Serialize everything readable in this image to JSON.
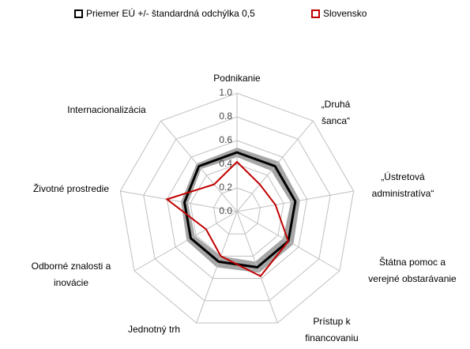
{
  "chart_data": {
    "type": "radar",
    "categories": [
      [
        "Podnikanie"
      ],
      [
        "„Druhá",
        "šanca“"
      ],
      [
        "„Ústretová",
        "administratíva“"
      ],
      [
        "Štátna pomoc a",
        "verejné obstarávanie"
      ],
      [
        "Prístup k",
        "financovaniu"
      ],
      [
        "Jednotný trh"
      ],
      [
        "Odborné znalosti a",
        "inovácie"
      ],
      [
        "Životné prostredie"
      ],
      [
        "Internacionalizácia"
      ]
    ],
    "series": [
      {
        "name": "Priemer EÚ +/- štandardná odchýlka 0,5",
        "color": "#000000",
        "band_color": "#a6a6a6",
        "values": [
          0.5,
          0.5,
          0.5,
          0.5,
          0.5,
          0.45,
          0.45,
          0.45,
          0.5
        ],
        "upper": [
          0.54,
          0.55,
          0.54,
          0.55,
          0.55,
          0.5,
          0.49,
          0.48,
          0.53
        ],
        "lower": [
          0.46,
          0.45,
          0.46,
          0.45,
          0.45,
          0.4,
          0.41,
          0.42,
          0.47
        ]
      },
      {
        "name": "Slovensko",
        "color": "#c00000",
        "values": [
          0.42,
          0.3,
          0.33,
          0.5,
          0.58,
          0.4,
          0.3,
          0.6,
          0.3
        ]
      }
    ],
    "ylim": [
      0,
      1
    ],
    "yticks": [
      {
        "value": 0,
        "label": "0.0"
      },
      0.2,
      0.4,
      0.6,
      0.8,
      {
        "value": 1,
        "label": "1.0"
      }
    ]
  }
}
